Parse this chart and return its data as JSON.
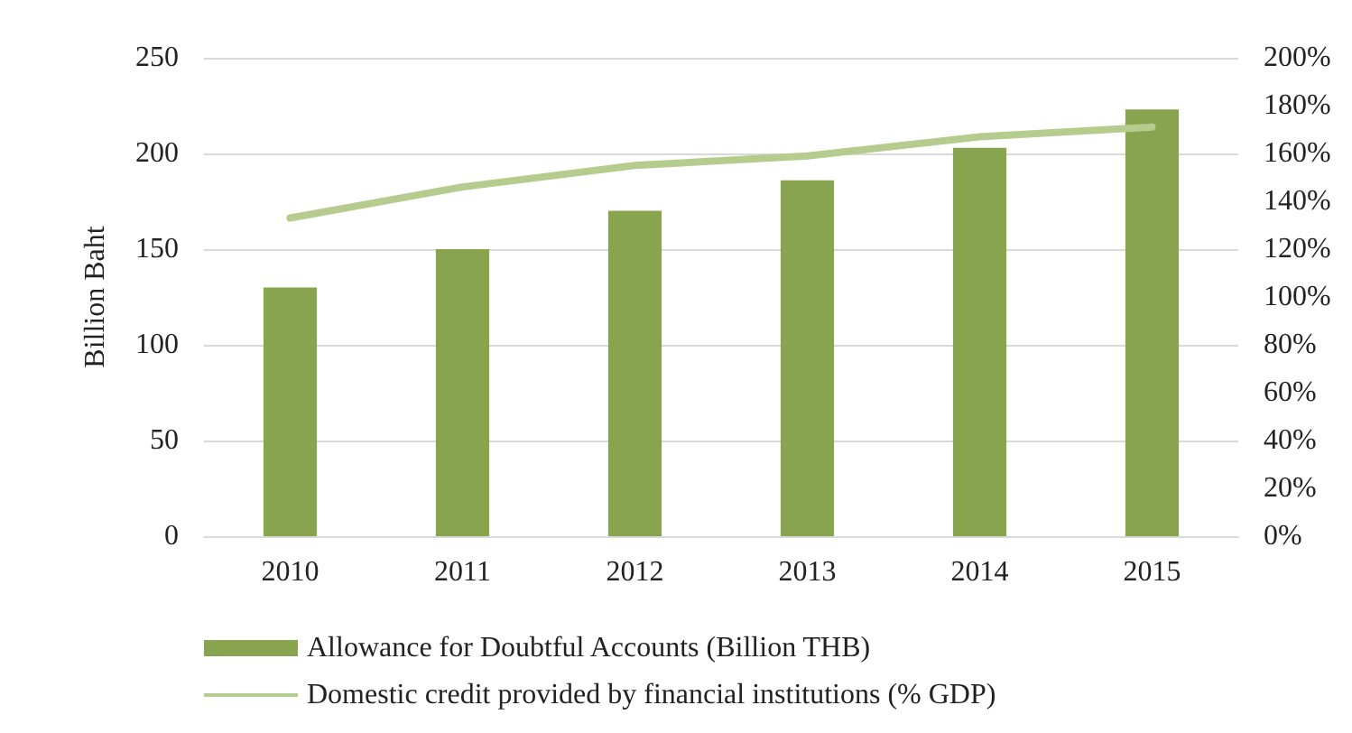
{
  "chart_data": {
    "type": "bar",
    "ylabel": "Billion Baht",
    "categories": [
      "2010",
      "2011",
      "2012",
      "2013",
      "2014",
      "2015"
    ],
    "series": [
      {
        "name": "Allowance for Doubtful Accounts (Billion THB)",
        "color": "#88a44e",
        "values": [
          130,
          150,
          170,
          186,
          203,
          223
        ]
      },
      {
        "name": "Domestic credit provided by financial institutions (% GDP)",
        "type": "line",
        "axis": "y2",
        "color": "#b5cc8e",
        "values": [
          133,
          146,
          155,
          159,
          167,
          171
        ]
      }
    ],
    "ylim": [
      0,
      250
    ],
    "yticks": [
      0,
      50,
      100,
      150,
      200,
      250
    ],
    "y2lim": [
      0,
      200
    ],
    "y2ticks": [
      {
        "value": 0,
        "label": "0%"
      },
      {
        "value": 20,
        "label": "20%"
      },
      {
        "value": 40,
        "label": "40%"
      },
      {
        "value": 60,
        "label": "60%"
      },
      {
        "value": 80,
        "label": "80%"
      },
      {
        "value": 100,
        "label": "100%"
      },
      {
        "value": 120,
        "label": "120%"
      },
      {
        "value": 140,
        "label": "140%"
      },
      {
        "value": 160,
        "label": "160%"
      },
      {
        "value": 180,
        "label": "180%"
      },
      {
        "value": 200,
        "label": "200%"
      }
    ],
    "grid": "y",
    "legend": "bottom",
    "marker": "none"
  }
}
